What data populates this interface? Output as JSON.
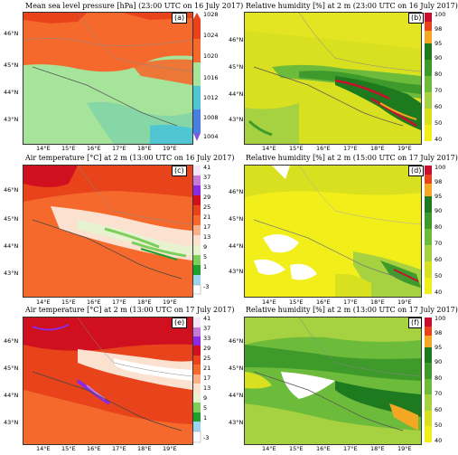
{
  "panels": [
    {
      "id": "a",
      "title": "Mean sea level pressure [hPa] (23:00 UTC on 16 July 2017)",
      "label": "(a)",
      "lat_labels": [
        "46°N",
        "45°N",
        "44°N",
        "43°N"
      ],
      "lon_labels": [
        "14°E",
        "15°E",
        "16°E",
        "17°E",
        "18°E",
        "19°E"
      ],
      "colorbar_ticks": [
        "1028",
        "1024",
        "1020",
        "1016",
        "1012",
        "1008",
        "1004"
      ],
      "colorbar_colors": [
        "#e8431b",
        "#f56a2c",
        "#a6e39b",
        "#86d6a6",
        "#4fc6d2",
        "#4a7fe0"
      ],
      "colors": {
        "main": "#f56a2c",
        "high": "#e8431b",
        "low": "#a6e39b",
        "lower": "#86d6a6",
        "lowest": "#4fc6d2"
      }
    },
    {
      "id": "b",
      "title": "Relative humidity [%] at 2 m (23:00 UTC on 16 July 2017)",
      "label": "(b)",
      "lat_labels": [
        "46°N",
        "45°N",
        "44°N",
        "43°N"
      ],
      "lon_labels": [
        "14°E",
        "15°E",
        "16°E",
        "17°E",
        "18°E",
        "19°E"
      ],
      "colorbar_ticks": [
        "100",
        "98",
        "95",
        "90",
        "80",
        "70",
        "60",
        "50",
        "40"
      ],
      "colorbar_colors": [
        "#c8102e",
        "#e8431b",
        "#f5a623",
        "#1e7a1e",
        "#3d9a2b",
        "#6dbb3a",
        "#a6d140",
        "#d8e020",
        "#f2ee1a"
      ]
    },
    {
      "id": "c",
      "title": "Air temperature [°C] at 2 m (13:00 UTC on 16 July 2017)",
      "label": "(c)",
      "lat_labels": [
        "46°N",
        "45°N",
        "44°N",
        "43°N"
      ],
      "lon_labels": [
        "14°E",
        "15°E",
        "16°E",
        "17°E",
        "18°E",
        "19°E"
      ],
      "colorbar_ticks": [
        "41",
        "37",
        "33",
        "29",
        "25",
        "21",
        "17",
        "13",
        "9",
        "5",
        "1",
        "-3"
      ],
      "colorbar_colors": [
        "#f2e6f7",
        "#c37ad9",
        "#8a2be2",
        "#d0101e",
        "#e8431b",
        "#f56a2c",
        "#f9b18a",
        "#fbe2d0",
        "#e7f2d0",
        "#7ccf5a",
        "#1e9e2d",
        "#9ad7ef",
        "#ffffff"
      ]
    },
    {
      "id": "d",
      "title": "Relative humidity [%] at 2 m (15:00 UTC on 17 July 2017)",
      "label": "(d)",
      "lat_labels": [
        "46°N",
        "45°N",
        "44°N",
        "43°N"
      ],
      "lon_labels": [
        "14°E",
        "15°E",
        "16°E",
        "17°E",
        "18°E",
        "19°E"
      ],
      "colorbar_ticks": [
        "100",
        "98",
        "95",
        "90",
        "80",
        "70",
        "60",
        "50",
        "40"
      ],
      "colorbar_colors": [
        "#c8102e",
        "#e8431b",
        "#f5a623",
        "#1e7a1e",
        "#3d9a2b",
        "#6dbb3a",
        "#a6d140",
        "#d8e020",
        "#f2ee1a"
      ]
    },
    {
      "id": "e",
      "title": "Air temperature [°C] at 2 m (13:00 UTC on 17 July 2017)",
      "label": "(e)",
      "lat_labels": [
        "46°N",
        "45°N",
        "44°N",
        "43°N"
      ],
      "lon_labels": [
        "14°E",
        "15°E",
        "16°E",
        "17°E",
        "18°E",
        "19°E"
      ],
      "colorbar_ticks": [
        "41",
        "37",
        "33",
        "29",
        "25",
        "21",
        "17",
        "13",
        "9",
        "5",
        "1",
        "-3"
      ],
      "colorbar_colors": [
        "#f2e6f7",
        "#c37ad9",
        "#8a2be2",
        "#d0101e",
        "#e8431b",
        "#f56a2c",
        "#f9b18a",
        "#fbe2d0",
        "#e7f2d0",
        "#7ccf5a",
        "#1e9e2d",
        "#9ad7ef",
        "#ffffff"
      ]
    },
    {
      "id": "f",
      "title": "Relative humidity [%] at 2 m (13:00 UTC on 17 July 2017)",
      "label": "(f)",
      "lat_labels": [
        "46°N",
        "45°N",
        "44°N",
        "43°N"
      ],
      "lon_labels": [
        "14°E",
        "15°E",
        "16°E",
        "17°E",
        "18°E",
        "19°E"
      ],
      "colorbar_ticks": [
        "100",
        "98",
        "95",
        "90",
        "80",
        "70",
        "60",
        "50",
        "40"
      ],
      "colorbar_colors": [
        "#c8102e",
        "#e8431b",
        "#f5a623",
        "#1e7a1e",
        "#3d9a2b",
        "#6dbb3a",
        "#a6d140",
        "#d8e020",
        "#f2ee1a"
      ]
    }
  ]
}
